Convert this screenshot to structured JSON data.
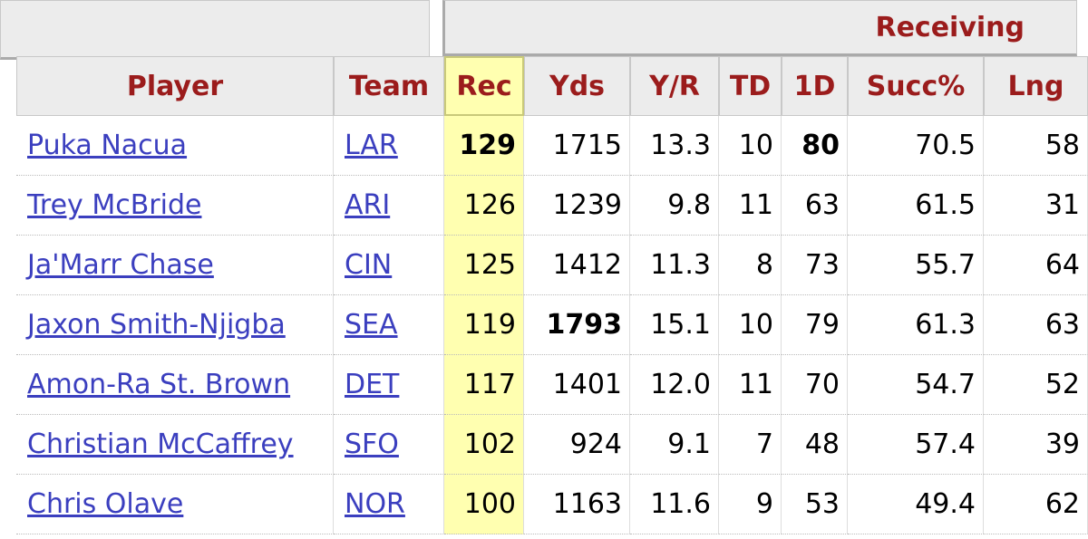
{
  "header": {
    "group": "Receiving",
    "columns": [
      "Player",
      "Team",
      "Rec",
      "Yds",
      "Y/R",
      "TD",
      "1D",
      "Succ%",
      "Lng"
    ]
  },
  "table": {
    "rows": [
      [
        "Puka Nacua",
        "LAR",
        "129",
        "1715",
        "13.3",
        "10",
        "80",
        "70.5",
        "58"
      ],
      [
        "Trey McBride",
        "ARI",
        "126",
        "1239",
        "9.8",
        "11",
        "63",
        "61.5",
        "31"
      ],
      [
        "Ja'Marr Chase",
        "CIN",
        "125",
        "1412",
        "11.3",
        "8",
        "73",
        "55.7",
        "64"
      ],
      [
        "Jaxon Smith-Njigba",
        "SEA",
        "119",
        "1793",
        "15.1",
        "10",
        "79",
        "61.3",
        "63"
      ],
      [
        "Amon-Ra St. Brown",
        "DET",
        "117",
        "1401",
        "12.0",
        "11",
        "70",
        "54.7",
        "52"
      ],
      [
        "Christian McCaffrey",
        "SFO",
        "102",
        "924",
        "9.1",
        "7",
        "48",
        "57.4",
        "39"
      ],
      [
        "Chris Olave",
        "NOR",
        "100",
        "1163",
        "11.6",
        "9",
        "53",
        "49.4",
        "62"
      ]
    ]
  }
}
